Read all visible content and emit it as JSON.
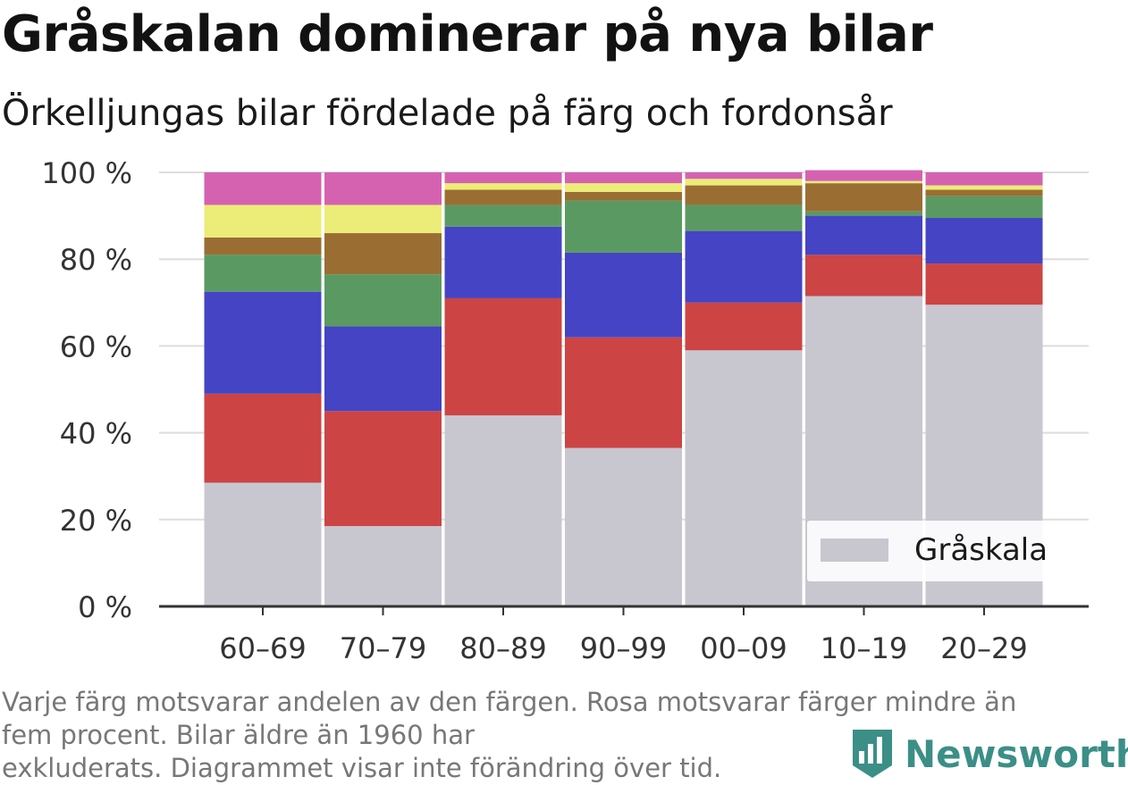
{
  "title": "Gråskalan dominerar på nya bilar",
  "subtitle": "Örkelljungas bilar fördelade på färg och fordonsår",
  "footnote_line1": "Varje färg motsvarar andelen av den färgen. Rosa motsvarar färger mindre än",
  "footnote_line2": "fem procent. Bilar äldre än 1960 har",
  "footnote_line3": "exkluderats. Diagrammet visar inte förändring över tid.",
  "brand": {
    "name": "Newsworthy",
    "icon": "newsworthy-logo-icon",
    "color": "#3b8f87"
  },
  "chart_data": {
    "type": "bar",
    "stacked": true,
    "categories": [
      "60–69",
      "70–79",
      "80–89",
      "90–99",
      "00–09",
      "10–19",
      "20–29"
    ],
    "ylim": [
      0,
      100
    ],
    "yticks": [
      0,
      20,
      40,
      60,
      80,
      100
    ],
    "ytick_labels": [
      "0 %",
      "20 %",
      "40 %",
      "60 %",
      "80 %",
      "100 %"
    ],
    "grid": true,
    "legend": {
      "position": "bottom-right",
      "entries": [
        "Gråskala"
      ]
    },
    "series": [
      {
        "name": "Gråskala",
        "color": "#c8c7d0",
        "values": [
          28.5,
          18.5,
          44,
          36.5,
          59,
          71.5,
          69.5
        ]
      },
      {
        "color": "#cc4444",
        "values": [
          20.5,
          26.5,
          27,
          25.5,
          11,
          9.5,
          9.5
        ]
      },
      {
        "color": "#4444c4",
        "values": [
          23.5,
          19.5,
          16.5,
          19.5,
          16.5,
          9,
          10.5
        ]
      },
      {
        "color": "#5a9a62",
        "values": [
          8.5,
          12,
          5,
          12,
          6,
          1,
          5
        ]
      },
      {
        "color": "#9a6e33",
        "values": [
          4,
          9.5,
          3.5,
          2,
          4.5,
          6.5,
          1.5
        ]
      },
      {
        "color": "#ecec78",
        "values": [
          7.5,
          6.5,
          1.5,
          2,
          1.5,
          0.5,
          1
        ]
      },
      {
        "color": "#d562b0",
        "values": [
          7.5,
          7.5,
          2.5,
          2.5,
          1.5,
          2.5,
          3
        ]
      }
    ]
  }
}
